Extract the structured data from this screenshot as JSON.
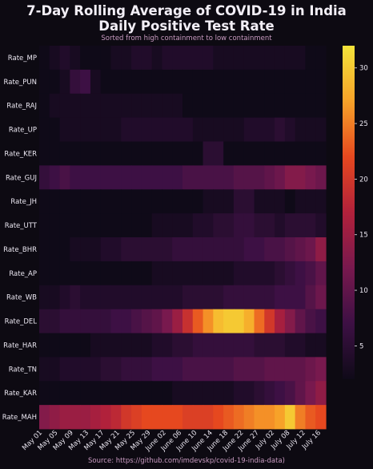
{
  "title_line1": "7-Day Rolling Average of COVID-19 in India",
  "title_line2": "Daily Positive Test Rate",
  "subtitle": "Sorted from high containment to low containment",
  "source": "Source: https://github.com/imdevskp/covid-19-india-data)",
  "chart_data": {
    "type": "heatmap",
    "title": "7-Day Rolling Average of COVID-19 in India — Daily Positive Test Rate",
    "colorbar": {
      "min": 2,
      "max": 32,
      "ticks": [
        5,
        10,
        15,
        20,
        25,
        30
      ]
    },
    "colorscale": [
      "#0f0a18",
      "#3d1044",
      "#78194e",
      "#b1213b",
      "#e6481f",
      "#f7a229",
      "#f4e33a"
    ],
    "xticks": [
      "May 01",
      "May 05",
      "May 09",
      "May 13",
      "May 17",
      "May 21",
      "May 25",
      "May 29",
      "June 02",
      "June 06",
      "June 10",
      "June 14",
      "June 18",
      "June 22",
      "June 27",
      "July 02",
      "July 08",
      "July 12",
      "July 16"
    ],
    "rows": [
      "Rate_MP",
      "Rate_PUN",
      "Rate_RAJ",
      "Rate_UP",
      "Rate_KER",
      "Rate_GUJ",
      "Rate_JH",
      "Rate_UTT",
      "Rate_BHR",
      "Rate_AP",
      "Rate_WB",
      "Rate_DEL",
      "Rate_HAR",
      "Rate_TN",
      "Rate_KAR",
      "Rate_MAH"
    ],
    "values": [
      [
        2,
        3,
        4,
        3,
        2,
        2,
        2,
        3,
        3,
        4,
        4,
        3,
        4,
        4,
        4,
        4,
        4,
        3,
        3,
        3,
        3,
        3,
        3,
        3,
        3,
        3,
        2,
        2
      ],
      [
        2,
        2,
        3,
        6,
        7,
        3,
        2,
        2,
        2,
        2,
        2,
        2,
        2,
        2,
        2,
        2,
        2,
        2,
        2,
        2,
        2,
        2,
        2,
        2,
        2,
        2,
        2,
        2
      ],
      [
        2,
        3,
        3,
        3,
        3,
        3,
        3,
        3,
        3,
        3,
        3,
        3,
        3,
        3,
        2,
        2,
        2,
        2,
        2,
        2,
        2,
        2,
        2,
        2,
        2,
        2,
        2,
        2
      ],
      [
        2,
        2,
        3,
        3,
        3,
        3,
        3,
        3,
        4,
        4,
        4,
        4,
        4,
        4,
        4,
        3,
        3,
        3,
        3,
        3,
        4,
        4,
        4,
        5,
        4,
        3,
        3,
        3
      ],
      [
        2,
        2,
        2,
        2,
        2,
        2,
        2,
        2,
        2,
        2,
        2,
        2,
        2,
        2,
        2,
        2,
        5,
        5,
        2,
        2,
        2,
        2,
        2,
        2,
        2,
        2,
        2,
        2
      ],
      [
        6,
        7,
        8,
        7,
        7,
        7,
        7,
        7,
        7,
        7,
        7,
        7,
        7,
        7,
        8,
        8,
        8,
        8,
        8,
        9,
        9,
        9,
        10,
        11,
        13,
        13,
        12,
        11
      ],
      [
        2,
        2,
        2,
        2,
        2,
        2,
        2,
        2,
        2,
        2,
        2,
        2,
        2,
        2,
        2,
        2,
        3,
        3,
        3,
        5,
        5,
        3,
        3,
        3,
        2,
        3,
        3,
        3
      ],
      [
        2,
        2,
        2,
        2,
        2,
        2,
        2,
        2,
        2,
        2,
        2,
        3,
        3,
        3,
        3,
        4,
        4,
        5,
        5,
        6,
        6,
        5,
        5,
        4,
        5,
        5,
        5,
        4
      ],
      [
        2,
        2,
        2,
        3,
        3,
        3,
        4,
        4,
        5,
        5,
        5,
        5,
        5,
        6,
        6,
        6,
        6,
        6,
        6,
        6,
        7,
        7,
        8,
        8,
        9,
        10,
        11,
        14
      ],
      [
        2,
        2,
        2,
        2,
        2,
        2,
        2,
        2,
        2,
        2,
        2,
        3,
        3,
        3,
        3,
        3,
        3,
        3,
        3,
        4,
        4,
        4,
        4,
        5,
        6,
        7,
        8,
        10
      ],
      [
        3,
        3,
        4,
        5,
        4,
        4,
        4,
        4,
        4,
        4,
        4,
        4,
        4,
        4,
        5,
        5,
        5,
        5,
        6,
        6,
        6,
        6,
        6,
        7,
        7,
        7,
        9,
        11
      ],
      [
        5,
        5,
        6,
        6,
        6,
        6,
        6,
        7,
        7,
        8,
        9,
        10,
        12,
        15,
        19,
        23,
        26,
        29,
        30,
        30,
        28,
        24,
        20,
        16,
        13,
        10,
        8,
        7
      ],
      [
        2,
        2,
        2,
        2,
        2,
        3,
        3,
        3,
        3,
        3,
        3,
        4,
        4,
        5,
        5,
        6,
        6,
        6,
        6,
        6,
        6,
        5,
        5,
        5,
        4,
        4,
        3,
        3
      ],
      [
        3,
        3,
        4,
        4,
        4,
        4,
        5,
        5,
        6,
        6,
        6,
        7,
        7,
        7,
        8,
        8,
        8,
        8,
        8,
        9,
        9,
        9,
        10,
        10,
        10,
        10,
        11,
        12
      ],
      [
        2,
        2,
        2,
        2,
        2,
        2,
        2,
        2,
        2,
        2,
        2,
        2,
        2,
        3,
        3,
        3,
        3,
        3,
        3,
        4,
        4,
        5,
        6,
        7,
        8,
        10,
        12,
        14
      ],
      [
        13,
        14,
        15,
        15,
        15,
        16,
        17,
        18,
        20,
        21,
        22,
        22,
        22,
        22,
        21,
        21,
        21,
        22,
        23,
        24,
        25,
        26,
        26,
        27,
        30,
        25,
        23,
        22
      ]
    ]
  }
}
